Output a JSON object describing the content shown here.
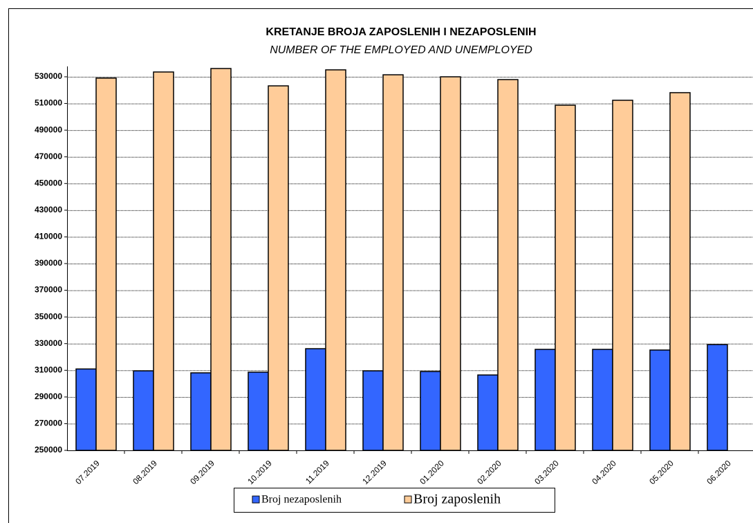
{
  "chart_data": {
    "type": "bar",
    "title": "KRETANJE BROJA ZAPOSLENIH I NEZAPOSLENIH",
    "subtitle": "NUMBER OF THE EMPLOYED AND UNEMPLOYED",
    "categories": [
      "07.2019",
      "08.2019",
      "09.2019",
      "10.2019",
      "11.2019",
      "12.2019",
      "01.2020",
      "02.2020",
      "03.2020",
      "04.2020",
      "05.2020",
      "06.2020"
    ],
    "series": [
      {
        "name": "Broj nezaposlenih",
        "color": "#3366ff",
        "values": [
          311000,
          309600,
          308100,
          308600,
          326200,
          309600,
          309100,
          306500,
          325700,
          325700,
          325200,
          329300
        ]
      },
      {
        "name": "Broj zaposlenih",
        "color": "#ffcc99",
        "values": [
          529000,
          533600,
          536200,
          523200,
          535200,
          531500,
          530000,
          527900,
          508700,
          512400,
          518100,
          null
        ]
      }
    ],
    "ylim": [
      250000,
      530000
    ],
    "yticks": [
      250000,
      270000,
      290000,
      310000,
      330000,
      350000,
      370000,
      390000,
      410000,
      430000,
      450000,
      470000,
      490000,
      510000,
      530000
    ],
    "grid": true,
    "legend": "bottom"
  }
}
